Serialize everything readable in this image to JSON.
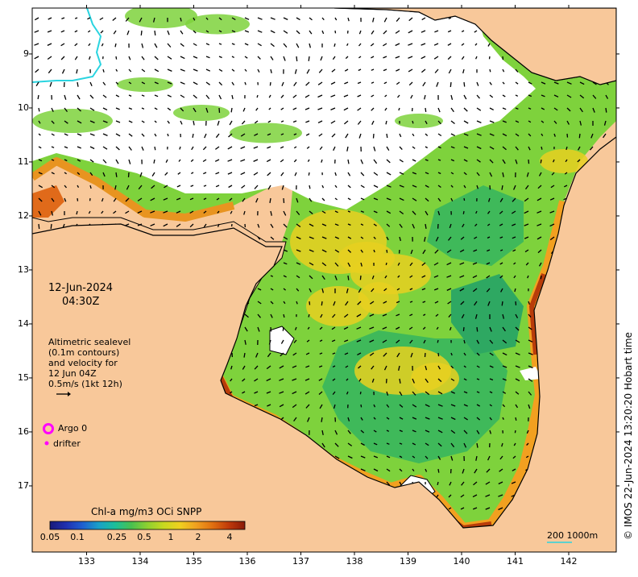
{
  "timestamp": {
    "date": "12-Jun-2024",
    "time": "04:30Z"
  },
  "altimetry_note": [
    "Altimetric sealevel",
    "(0.1m contours)",
    "and velocity for",
    "12 Jun 04Z",
    "0.5m/s (1kt 12h)"
  ],
  "legend": {
    "argo": "Argo 0",
    "drifter": "drifter"
  },
  "colorbar": {
    "title": "Chl-a mg/m3 OCi SNPP",
    "ticks": [
      "0.05",
      "0.1",
      "0.25",
      "0.5",
      "1",
      "2",
      "4"
    ]
  },
  "scale_bar": {
    "label": "200  1000m"
  },
  "credit": "© IMOS 22-Jun-2024 13:20:20 Hobart time",
  "axes": {
    "lat_ticks": [
      "9",
      "10",
      "11",
      "12",
      "13",
      "14",
      "15",
      "16",
      "17"
    ],
    "lon_ticks": [
      "133",
      "134",
      "135",
      "136",
      "137",
      "138",
      "139",
      "140",
      "141",
      "142"
    ]
  },
  "colors": {
    "land": "#f8c89a",
    "chl_low": "#1a9a6e",
    "chl_mid": "#7ed23c",
    "chl_high": "#e8d020",
    "chl_max": "#b83c0a",
    "argo_marker": "#ff00ff",
    "cyan_contour": "#2ad4e0"
  }
}
